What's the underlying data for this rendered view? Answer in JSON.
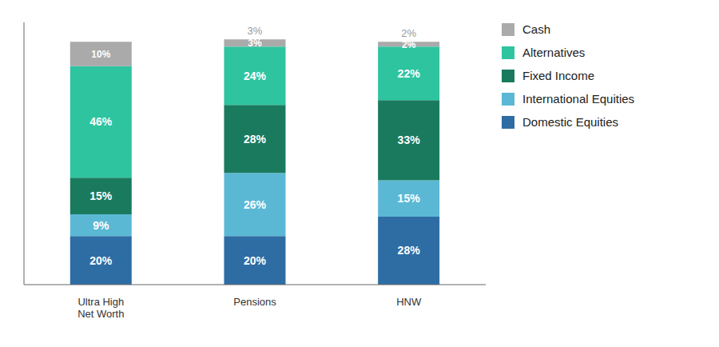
{
  "chart_data": {
    "type": "bar",
    "stacked": true,
    "categories": [
      "Ultra High\nNet Worth",
      "Pensions",
      "HNW"
    ],
    "series": [
      {
        "name": "Domestic Equities",
        "color": "#2e6da4",
        "values": [
          20,
          20,
          28
        ],
        "value_labels": [
          "20%",
          "20%",
          "28%"
        ]
      },
      {
        "name": "International Equities",
        "color": "#5bb8d4",
        "values": [
          9,
          26,
          15
        ],
        "value_labels": [
          "9%",
          "26%",
          "15%"
        ]
      },
      {
        "name": "Fixed Income",
        "color": "#1a7a5e",
        "values": [
          15,
          28,
          33
        ],
        "value_labels": [
          "15%",
          "28%",
          "33%"
        ]
      },
      {
        "name": "Alternatives",
        "color": "#2ec4a0",
        "values": [
          46,
          24,
          22
        ],
        "value_labels": [
          "46%",
          "24%",
          "22%"
        ]
      },
      {
        "name": "Cash",
        "color": "#aaaaaa",
        "values": [
          10,
          3,
          2
        ],
        "value_labels": [
          "10%",
          "3%",
          "2%"
        ]
      }
    ],
    "annotations": [
      {
        "category": "Pensions",
        "text": "3%"
      },
      {
        "category": "HNW",
        "text": "2%"
      }
    ],
    "ylim": [
      0,
      108
    ],
    "tick_labels": "x",
    "grid": false,
    "legend": "upper right",
    "data_labels": true
  }
}
